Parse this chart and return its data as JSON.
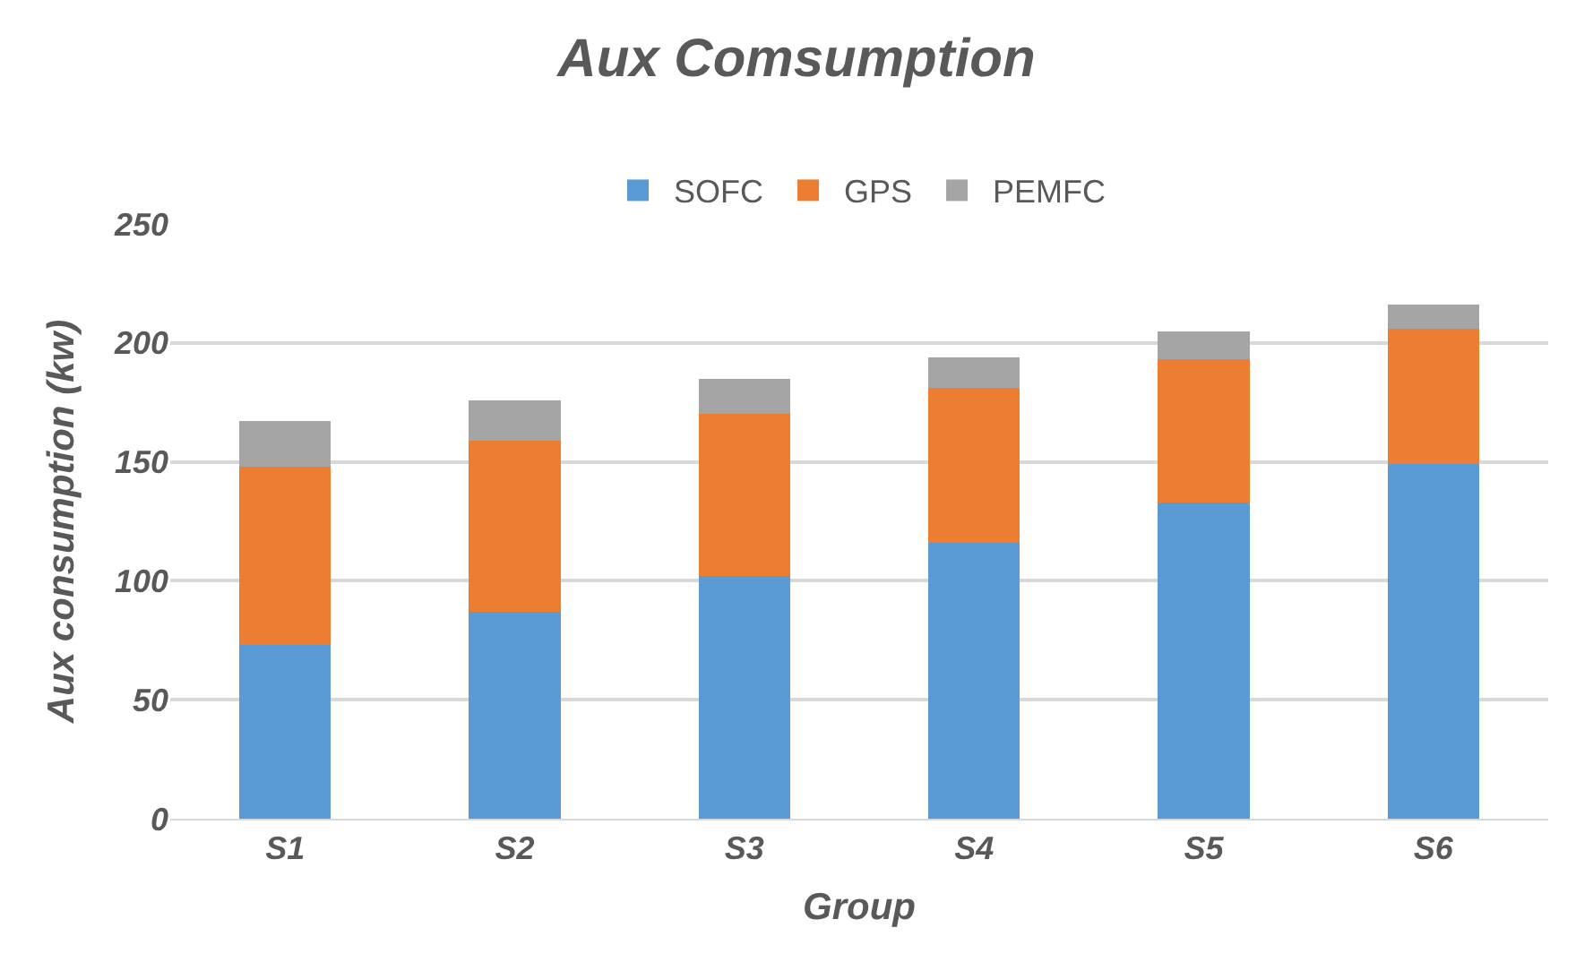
{
  "chart_data": {
    "type": "bar",
    "title": "Aux Comsumption",
    "xlabel": "Group",
    "ylabel": "Aux consumption (kw)",
    "categories": [
      "S1",
      "S2",
      "S3",
      "S4",
      "S5",
      "S6"
    ],
    "series": [
      {
        "name": "SOFC",
        "color": "#5b9bd5",
        "values": [
          73,
          87,
          102,
          116,
          133,
          149
        ]
      },
      {
        "name": "GPS",
        "color": "#ed7d31",
        "values": [
          75,
          72,
          68,
          65,
          60,
          57
        ]
      },
      {
        "name": "PEMFC",
        "color": "#a5a5a5",
        "values": [
          19,
          17,
          15,
          13,
          12,
          10
        ]
      }
    ],
    "stacked": true,
    "ylim": [
      0,
      250
    ],
    "yticks": [
      0,
      50,
      100,
      150,
      200,
      250
    ],
    "grid": "y",
    "legend": "top"
  }
}
